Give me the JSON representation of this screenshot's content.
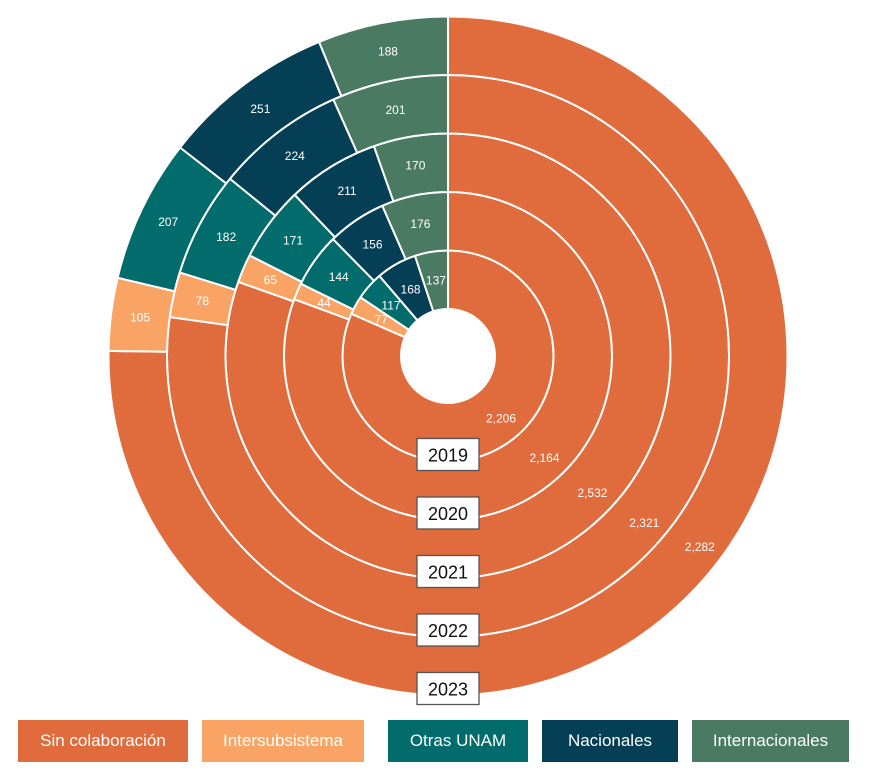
{
  "chart_data": {
    "type": "sunburst",
    "title": "",
    "categories": [
      "Sin colaboración",
      "Intersubsistema",
      "Otras UNAM",
      "Nacionales",
      "Internacionales"
    ],
    "colors": [
      "#E06B3C",
      "#F9A465",
      "#026B6B",
      "#053F55",
      "#4A7A62"
    ],
    "series": [
      {
        "name": "2019",
        "values": [
          2206,
          77,
          117,
          168,
          137
        ]
      },
      {
        "name": "2020",
        "values": [
          2164,
          44,
          144,
          156,
          176
        ]
      },
      {
        "name": "2021",
        "values": [
          2532,
          65,
          171,
          211,
          170
        ]
      },
      {
        "name": "2022",
        "values": [
          2321,
          78,
          182,
          224,
          201
        ]
      },
      {
        "name": "2023",
        "values": [
          2282,
          105,
          207,
          251,
          188
        ]
      }
    ],
    "value_labels": [
      [
        "2,206",
        "77",
        "117",
        "168",
        "137"
      ],
      [
        "2,164",
        "44",
        "144",
        "156",
        "176"
      ],
      [
        "2,532",
        "65",
        "171",
        "211",
        "170"
      ],
      [
        "2,321",
        "78",
        "182",
        "224",
        "201"
      ],
      [
        "2,282",
        "105",
        "207",
        "251",
        "188"
      ]
    ],
    "legend": [
      "Sin colaboración",
      "Intersubsistema",
      "Otras UNAM",
      "Nacionales",
      "Internacionales"
    ]
  }
}
